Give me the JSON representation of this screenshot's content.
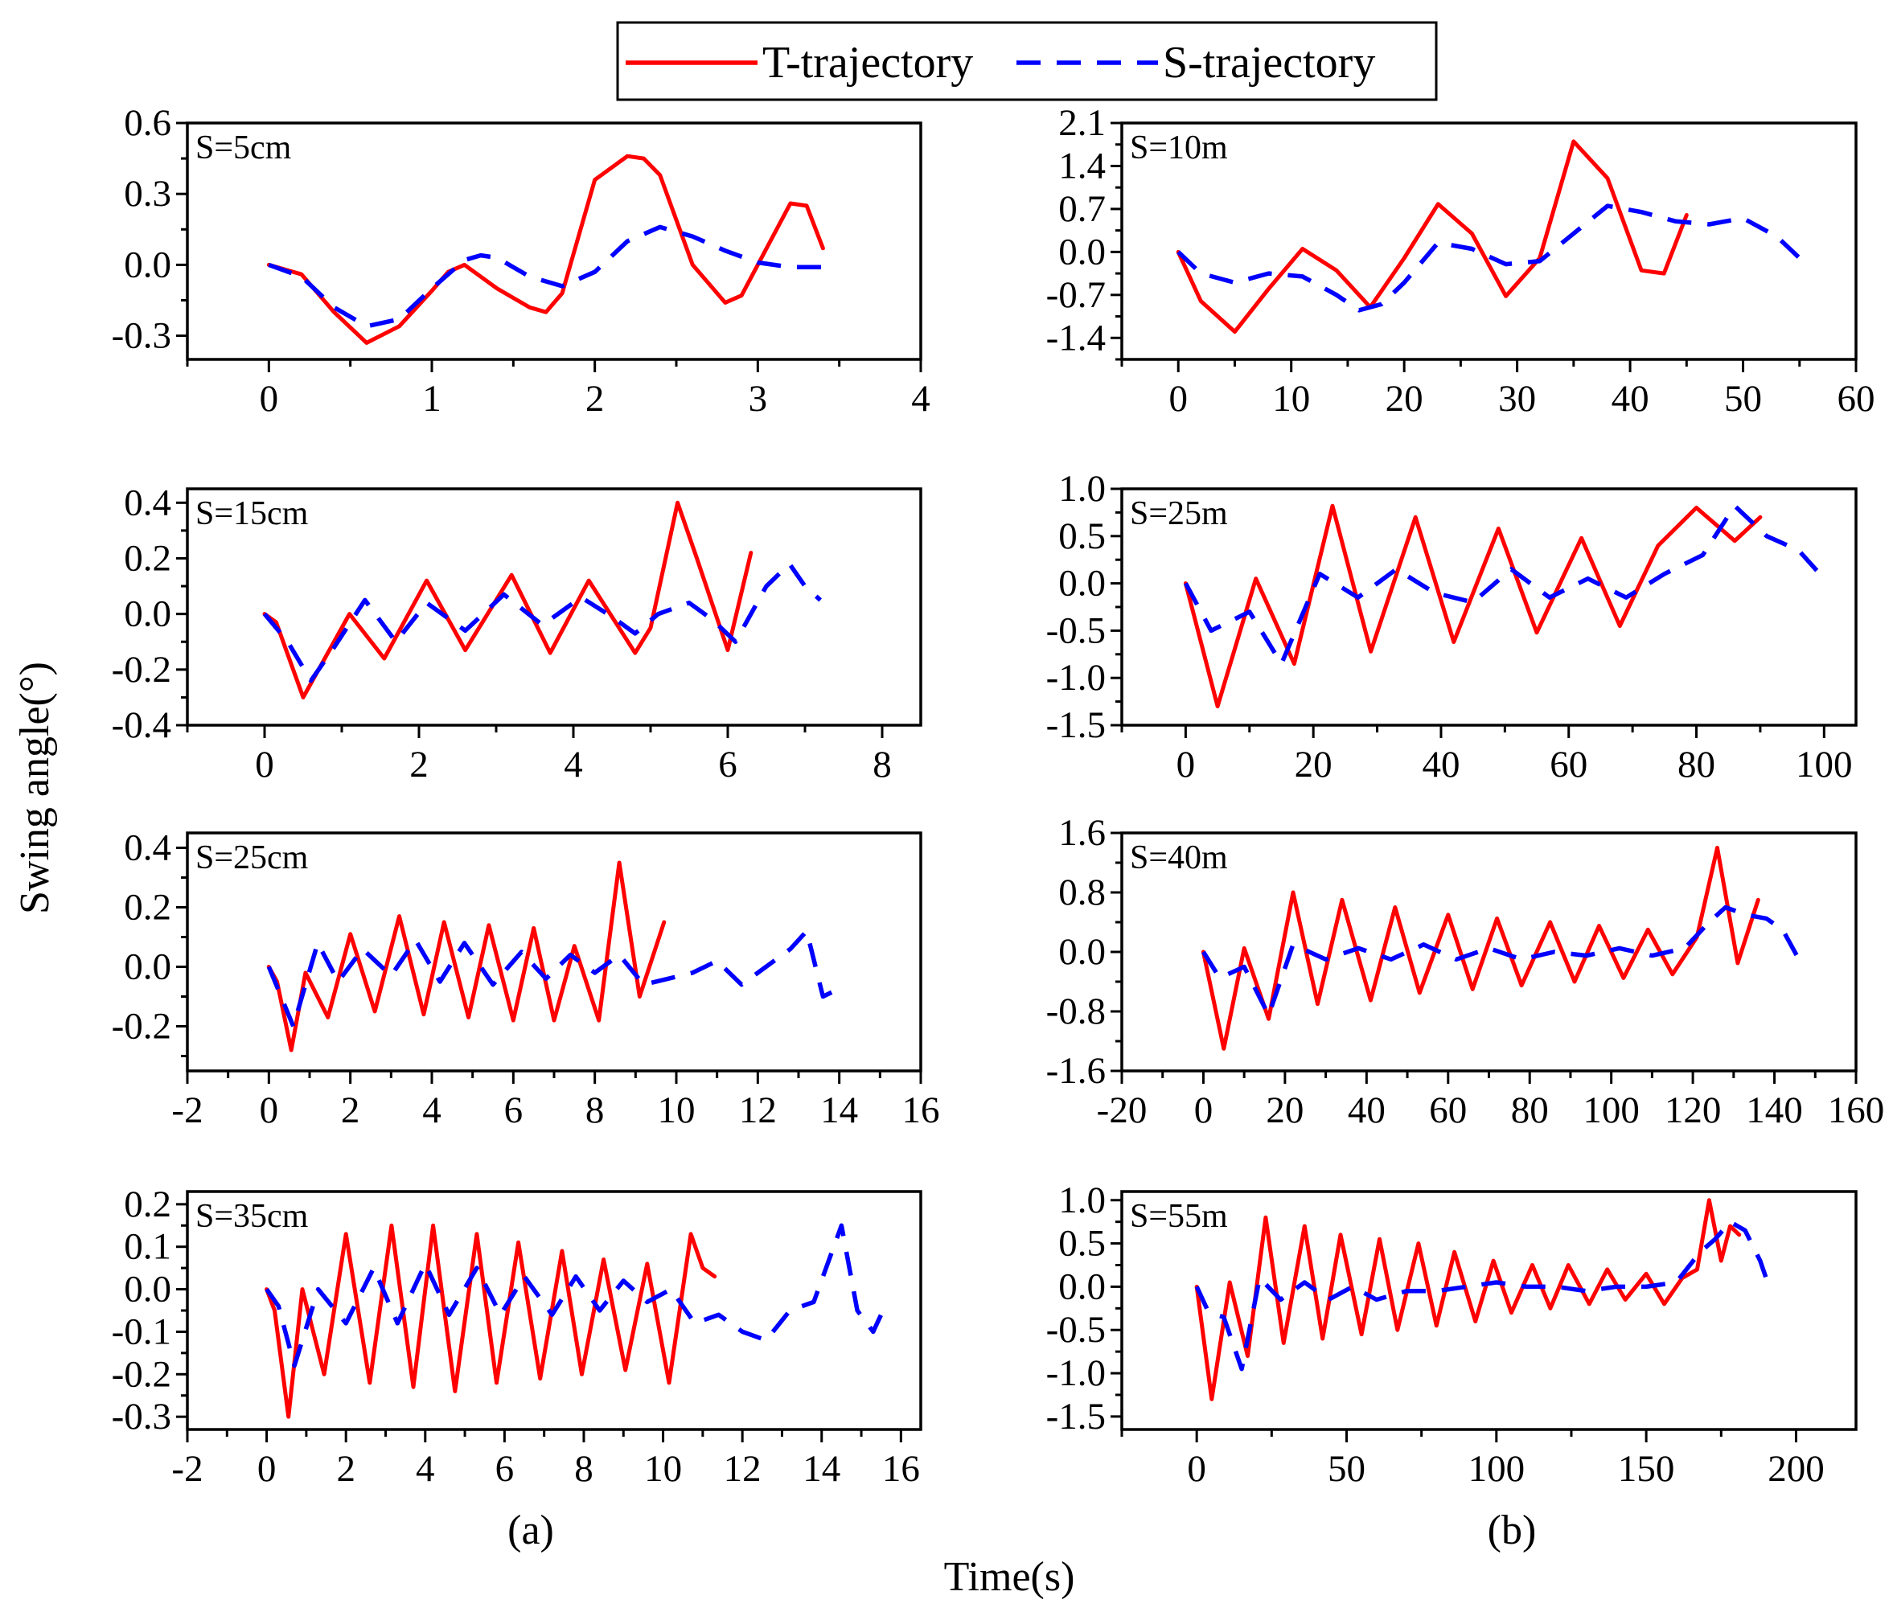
{
  "figure": {
    "legend": [
      "T-trajectory",
      "S-trajectory"
    ],
    "xlabel": "Time(s)",
    "ylabel": "Swing angle(°)",
    "column_labels": [
      "(a)",
      "(b)"
    ],
    "colors": {
      "t": "#ff0000",
      "s": "#0000ff"
    }
  },
  "chart_data": [
    {
      "type": "line",
      "label": "S=5cm",
      "xlim": [
        -0.5,
        4
      ],
      "xticks": [
        0,
        1,
        2,
        3,
        4
      ],
      "ylim": [
        -0.4,
        0.6
      ],
      "yticks": [
        -0.3,
        0.0,
        0.3,
        0.6
      ],
      "yticklabels": [
        "-0.3",
        "0.0",
        "0.3",
        "0.6"
      ],
      "series": [
        {
          "name": "T-trajectory",
          "x": [
            0,
            0.2,
            0.4,
            0.6,
            0.8,
            1.0,
            1.1,
            1.2,
            1.4,
            1.6,
            1.7,
            1.8,
            2.0,
            2.2,
            2.3,
            2.4,
            2.6,
            2.8,
            2.9,
            3.0,
            3.2,
            3.3,
            3.4
          ],
          "y": [
            0,
            -0.04,
            -0.2,
            -0.33,
            -0.26,
            -0.11,
            -0.03,
            0.0,
            -0.1,
            -0.18,
            -0.2,
            -0.12,
            0.36,
            0.46,
            0.45,
            0.38,
            0.0,
            -0.16,
            -0.13,
            0.0,
            0.26,
            0.25,
            0.07
          ]
        },
        {
          "name": "S-trajectory",
          "x": [
            0,
            0.2,
            0.4,
            0.6,
            0.8,
            1.0,
            1.2,
            1.3,
            1.4,
            1.6,
            1.8,
            2.0,
            2.2,
            2.4,
            2.6,
            2.8,
            3.0,
            3.2,
            3.4
          ],
          "y": [
            0,
            -0.05,
            -0.18,
            -0.26,
            -0.23,
            -0.1,
            0.02,
            0.04,
            0.03,
            -0.05,
            -0.09,
            -0.03,
            0.1,
            0.16,
            0.12,
            0.06,
            0.01,
            -0.01,
            -0.01
          ]
        }
      ]
    },
    {
      "type": "line",
      "label": "S=10m",
      "xlim": [
        -5,
        60
      ],
      "xticks": [
        0,
        10,
        20,
        30,
        40,
        50,
        60
      ],
      "ylim": [
        -1.75,
        2.1
      ],
      "yticks": [
        -1.4,
        -0.7,
        0.0,
        0.7,
        1.4,
        2.1
      ],
      "yticklabels": [
        "-1.4",
        "-0.7",
        "0.0",
        "0.7",
        "1.4",
        "2.1"
      ],
      "series": [
        {
          "name": "T-trajectory",
          "x": [
            0,
            2,
            5,
            8,
            11,
            14,
            17,
            20,
            23,
            26,
            29,
            32,
            35,
            38,
            41,
            43,
            45
          ],
          "y": [
            0,
            -0.8,
            -1.3,
            -0.6,
            0.05,
            -0.3,
            -0.9,
            -0.1,
            0.78,
            0.3,
            -0.72,
            -0.1,
            1.8,
            1.2,
            -0.3,
            -0.35,
            0.6
          ]
        },
        {
          "name": "S-trajectory",
          "x": [
            0,
            2,
            5,
            8,
            11,
            14,
            16,
            18,
            20,
            23,
            26,
            29,
            32,
            35,
            38,
            41,
            44,
            47,
            50,
            53,
            55
          ],
          "y": [
            0,
            -0.35,
            -0.5,
            -0.35,
            -0.4,
            -0.7,
            -0.95,
            -0.85,
            -0.5,
            0.15,
            0.05,
            -0.2,
            -0.15,
            0.3,
            0.75,
            0.65,
            0.5,
            0.45,
            0.55,
            0.25,
            -0.1
          ]
        }
      ]
    },
    {
      "type": "line",
      "label": "S=15cm",
      "xlim": [
        -1,
        8.5
      ],
      "xticks": [
        0,
        2,
        4,
        6,
        8
      ],
      "ylim": [
        -0.4,
        0.45
      ],
      "yticks": [
        -0.4,
        -0.2,
        0.0,
        0.2,
        0.4
      ],
      "yticklabels": [
        "-0.4",
        "-0.2",
        "0.0",
        "0.2",
        "0.4"
      ],
      "series": [
        {
          "name": "T-trajectory",
          "x": [
            0,
            0.15,
            0.5,
            0.8,
            1.1,
            1.55,
            2.1,
            2.6,
            3.2,
            3.7,
            4.2,
            4.8,
            5.0,
            5.35,
            5.6,
            6.0,
            6.3
          ],
          "y": [
            0,
            -0.03,
            -0.3,
            -0.15,
            0.0,
            -0.16,
            0.12,
            -0.13,
            0.14,
            -0.14,
            0.12,
            -0.14,
            -0.05,
            0.4,
            0.2,
            -0.13,
            0.22
          ]
        },
        {
          "name": "S-trajectory",
          "x": [
            0,
            0.3,
            0.6,
            0.9,
            1.3,
            1.7,
            2.1,
            2.6,
            3.1,
            3.6,
            4.1,
            4.5,
            4.8,
            5.1,
            5.5,
            5.8,
            6.1,
            6.5,
            6.8,
            7.0,
            7.2
          ],
          "y": [
            0,
            -0.1,
            -0.24,
            -0.12,
            0.05,
            -0.1,
            0.04,
            -0.06,
            0.07,
            -0.04,
            0.06,
            -0.01,
            -0.07,
            0.0,
            0.04,
            -0.02,
            -0.1,
            0.1,
            0.18,
            0.1,
            0.05
          ]
        }
      ]
    },
    {
      "type": "line",
      "label": "S=25m",
      "xlim": [
        -10,
        105
      ],
      "xticks": [
        0,
        20,
        40,
        60,
        80,
        100
      ],
      "ylim": [
        -1.5,
        1.0
      ],
      "yticks": [
        -1.5,
        -1.0,
        -0.5,
        0.0,
        0.5,
        1.0
      ],
      "yticklabels": [
        "-1.5",
        "-1.0",
        "-0.5",
        "0.0",
        "0.5",
        "1.0"
      ],
      "series": [
        {
          "name": "T-trajectory",
          "x": [
            0,
            5,
            11,
            17,
            23,
            29,
            36,
            42,
            49,
            55,
            62,
            68,
            74,
            80,
            86,
            90
          ],
          "y": [
            0,
            -1.3,
            0.05,
            -0.85,
            0.82,
            -0.72,
            0.7,
            -0.62,
            0.58,
            -0.52,
            0.48,
            -0.45,
            0.4,
            0.8,
            0.45,
            0.7
          ]
        },
        {
          "name": "S-trajectory",
          "x": [
            0,
            4,
            10,
            15,
            21,
            27,
            33,
            39,
            45,
            51,
            57,
            63,
            69,
            75,
            81,
            86,
            91,
            96,
            100
          ],
          "y": [
            0,
            -0.5,
            -0.3,
            -0.85,
            0.1,
            -0.15,
            0.15,
            -0.1,
            -0.2,
            0.15,
            -0.15,
            0.05,
            -0.15,
            0.1,
            0.3,
            0.82,
            0.5,
            0.35,
            0.05
          ]
        }
      ]
    },
    {
      "type": "line",
      "label": "S=25cm",
      "xlim": [
        -2,
        16
      ],
      "xticks": [
        -2,
        0,
        2,
        4,
        6,
        8,
        10,
        12,
        14,
        16
      ],
      "ylim": [
        -0.35,
        0.45
      ],
      "yticks": [
        -0.2,
        0.0,
        0.2,
        0.4
      ],
      "yticklabels": [
        "-0.2",
        "0.0",
        "0.2",
        "0.4"
      ],
      "series": [
        {
          "name": "T-trajectory",
          "x": [
            0,
            0.2,
            0.55,
            0.9,
            1.45,
            2.0,
            2.6,
            3.2,
            3.8,
            4.3,
            4.9,
            5.4,
            6.0,
            6.5,
            7.0,
            7.5,
            8.1,
            8.6,
            9.1,
            9.7
          ],
          "y": [
            0,
            -0.05,
            -0.28,
            -0.02,
            -0.17,
            0.11,
            -0.15,
            0.17,
            -0.16,
            0.15,
            -0.17,
            0.14,
            -0.18,
            0.13,
            -0.18,
            0.07,
            -0.18,
            0.35,
            -0.1,
            0.15
          ]
        },
        {
          "name": "S-trajectory",
          "x": [
            0,
            0.3,
            0.6,
            1.2,
            1.7,
            2.3,
            3.0,
            3.6,
            4.2,
            4.8,
            5.5,
            6.2,
            6.8,
            7.4,
            8.0,
            8.6,
            9.2,
            9.8,
            10.4,
            11.0,
            11.6,
            12.2,
            12.8,
            13.2,
            13.6,
            13.9
          ],
          "y": [
            0,
            -0.1,
            -0.2,
            0.08,
            -0.05,
            0.06,
            -0.03,
            0.09,
            -0.05,
            0.08,
            -0.06,
            0.05,
            -0.04,
            0.04,
            -0.02,
            0.04,
            -0.06,
            -0.04,
            -0.02,
            0.02,
            -0.06,
            0.0,
            0.06,
            0.12,
            -0.1,
            -0.08
          ]
        }
      ]
    },
    {
      "type": "line",
      "label": "S=40m",
      "xlim": [
        -20,
        160
      ],
      "xticks": [
        -20,
        0,
        20,
        40,
        60,
        80,
        100,
        120,
        140,
        160
      ],
      "ylim": [
        -1.6,
        1.6
      ],
      "yticks": [
        -1.6,
        -0.8,
        0.0,
        0.8,
        1.6
      ],
      "yticklabels": [
        "-1.6",
        "-0.8",
        "0.0",
        "0.8",
        "1.6"
      ],
      "series": [
        {
          "name": "T-trajectory",
          "x": [
            0,
            5,
            10,
            16,
            22,
            28,
            34,
            41,
            47,
            53,
            60,
            66,
            72,
            78,
            85,
            91,
            97,
            103,
            109,
            115,
            121,
            126,
            131,
            136
          ],
          "y": [
            0,
            -1.3,
            0.05,
            -0.9,
            0.8,
            -0.7,
            0.7,
            -0.65,
            0.6,
            -0.55,
            0.5,
            -0.5,
            0.45,
            -0.45,
            0.4,
            -0.4,
            0.35,
            -0.35,
            0.3,
            -0.3,
            0.2,
            1.4,
            -0.15,
            0.7
          ]
        },
        {
          "name": "S-trajectory",
          "x": [
            0,
            4,
            10,
            16,
            22,
            30,
            38,
            46,
            54,
            62,
            70,
            78,
            86,
            94,
            102,
            110,
            118,
            124,
            128,
            133,
            138,
            142,
            146
          ],
          "y": [
            0,
            -0.35,
            -0.2,
            -0.85,
            0.1,
            -0.1,
            0.05,
            -0.1,
            0.1,
            -0.1,
            0.05,
            -0.1,
            0.0,
            -0.05,
            0.05,
            -0.05,
            0.05,
            0.4,
            0.6,
            0.5,
            0.45,
            0.3,
            -0.1
          ]
        }
      ]
    },
    {
      "type": "line",
      "label": "S=35cm",
      "xlim": [
        -2,
        16.5
      ],
      "xticks": [
        -2,
        0,
        2,
        4,
        6,
        8,
        10,
        12,
        14,
        16
      ],
      "ylim": [
        -0.33,
        0.23
      ],
      "yticks": [
        -0.3,
        -0.2,
        -0.1,
        0.0,
        0.1,
        0.2
      ],
      "yticklabels": [
        "-0.3",
        "-0.2",
        "-0.1",
        "0.0",
        "0.1",
        "0.2"
      ],
      "series": [
        {
          "name": "T-trajectory",
          "x": [
            0,
            0.2,
            0.55,
            0.9,
            1.45,
            2.0,
            2.6,
            3.15,
            3.7,
            4.2,
            4.75,
            5.3,
            5.8,
            6.35,
            6.9,
            7.45,
            7.95,
            8.5,
            9.05,
            9.6,
            10.15,
            10.7,
            11.0,
            11.3
          ],
          "y": [
            0,
            -0.05,
            -0.3,
            0.0,
            -0.2,
            0.13,
            -0.22,
            0.15,
            -0.23,
            0.15,
            -0.24,
            0.13,
            -0.22,
            0.11,
            -0.21,
            0.09,
            -0.2,
            0.07,
            -0.19,
            0.06,
            -0.22,
            0.13,
            0.05,
            0.03
          ]
        },
        {
          "name": "S-trajectory",
          "x": [
            0,
            0.3,
            0.7,
            1.3,
            2.0,
            2.7,
            3.3,
            4.0,
            4.6,
            5.3,
            5.9,
            6.5,
            7.2,
            7.8,
            8.4,
            9.0,
            9.6,
            10.2,
            10.8,
            11.4,
            12.0,
            12.6,
            13.2,
            13.8,
            14.5,
            14.9,
            15.3,
            15.6
          ],
          "y": [
            0,
            -0.04,
            -0.18,
            0.0,
            -0.08,
            0.05,
            -0.08,
            0.06,
            -0.06,
            0.05,
            -0.06,
            0.03,
            -0.06,
            0.03,
            -0.05,
            0.02,
            -0.03,
            0.0,
            -0.08,
            -0.06,
            -0.1,
            -0.12,
            -0.05,
            -0.03,
            0.15,
            -0.05,
            -0.1,
            -0.04
          ]
        }
      ]
    },
    {
      "type": "line",
      "label": "S=55m",
      "xlim": [
        -25,
        220
      ],
      "xticks": [
        0,
        50,
        100,
        150,
        200
      ],
      "ylim": [
        -1.65,
        1.1
      ],
      "yticks": [
        -1.5,
        -1.0,
        -0.5,
        0.0,
        0.5,
        1.0
      ],
      "yticklabels": [
        "-1.5",
        "-1.0",
        "-0.5",
        "0.0",
        "0.5",
        "1.0"
      ],
      "series": [
        {
          "name": "T-trajectory",
          "x": [
            0,
            5,
            11,
            17,
            23,
            29,
            36,
            42,
            48,
            55,
            61,
            67,
            74,
            80,
            86,
            93,
            99,
            105,
            112,
            118,
            124,
            131,
            137,
            143,
            150,
            156,
            162,
            167,
            171,
            175,
            178,
            181
          ],
          "y": [
            0,
            -1.3,
            0.05,
            -0.8,
            0.8,
            -0.65,
            0.7,
            -0.6,
            0.6,
            -0.55,
            0.55,
            -0.5,
            0.5,
            -0.45,
            0.4,
            -0.4,
            0.3,
            -0.3,
            0.25,
            -0.25,
            0.25,
            -0.2,
            0.2,
            -0.15,
            0.15,
            -0.2,
            0.1,
            0.2,
            1.0,
            0.3,
            0.7,
            0.6
          ]
        },
        {
          "name": "S-trajectory",
          "x": [
            0,
            4,
            9,
            15,
            21,
            28,
            36,
            44,
            52,
            60,
            70,
            80,
            90,
            100,
            110,
            120,
            130,
            140,
            150,
            160,
            168,
            173,
            178,
            183,
            188,
            191
          ],
          "y": [
            0,
            -0.3,
            -0.35,
            -0.95,
            0.1,
            -0.15,
            0.05,
            -0.15,
            0.0,
            -0.15,
            -0.05,
            -0.05,
            0.0,
            0.05,
            0.0,
            0.0,
            -0.05,
            0.0,
            0.0,
            0.05,
            0.4,
            0.55,
            0.75,
            0.65,
            0.3,
            0.0
          ]
        }
      ]
    }
  ]
}
